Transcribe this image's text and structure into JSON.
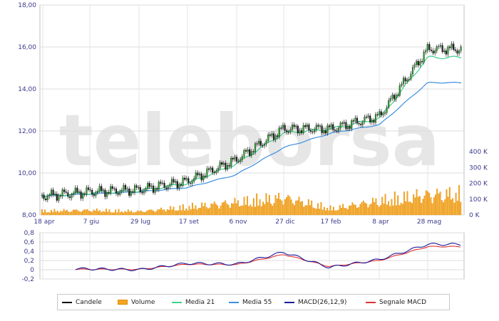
{
  "watermark": "teleborsa",
  "chart_data": [
    {
      "type": "candlestick",
      "panel": "price",
      "x": [
        "18 apr",
        "7 giu",
        "29 lug",
        "17 set",
        "6 nov",
        "27 dic",
        "17 feb",
        "8 apr",
        "28 mag"
      ],
      "y_ticks": [
        "8,00",
        "10,00",
        "12,00",
        "14,00",
        "16,00",
        "18,00"
      ],
      "ylim": [
        8,
        18
      ],
      "y2_ticks": [
        "0 K",
        "100 K",
        "200 K",
        "300 K",
        "400 K"
      ],
      "y2lim": [
        0,
        400000
      ],
      "grid": true,
      "series": [
        {
          "name": "Candele",
          "color": "#000000",
          "x": [
            "18 apr",
            "7 giu",
            "29 lug",
            "17 set",
            "6 nov",
            "27 dic",
            "17 feb",
            "8 apr",
            "28 mag"
          ],
          "values": [
            8.9,
            9.1,
            9.2,
            9.6,
            10.6,
            12.1,
            12.1,
            12.7,
            15.9
          ]
        },
        {
          "name": "Volume",
          "color": "#f5a623",
          "x": [
            "18 apr",
            "7 giu",
            "29 lug",
            "17 set",
            "6 nov",
            "27 dic",
            "17 feb",
            "8 apr",
            "28 mag"
          ],
          "values": [
            25000,
            30000,
            22000,
            50000,
            80000,
            110000,
            40000,
            90000,
            130000
          ]
        },
        {
          "name": "Media 21",
          "color": "#3ecf8e",
          "x": [
            "18 apr",
            "7 giu",
            "29 lug",
            "17 set",
            "6 nov",
            "27 dic",
            "17 feb",
            "8 apr",
            "28 mag"
          ],
          "values": [
            8.9,
            9.05,
            9.15,
            9.5,
            10.4,
            11.9,
            12.1,
            12.6,
            15.5
          ]
        },
        {
          "name": "Media 55",
          "color": "#3b8fe0",
          "x": [
            "18 apr",
            "7 giu",
            "29 lug",
            "17 set",
            "6 nov",
            "27 dic",
            "17 feb",
            "8 apr",
            "28 mag"
          ],
          "values": [
            8.9,
            9.0,
            9.1,
            9.3,
            9.9,
            11.2,
            11.9,
            12.3,
            14.3
          ]
        }
      ]
    },
    {
      "type": "line",
      "panel": "macd",
      "x": [
        "18 apr",
        "7 giu",
        "29 lug",
        "17 set",
        "6 nov",
        "27 dic",
        "17 feb",
        "8 apr",
        "28 mag"
      ],
      "y_ticks": [
        "-0,2",
        "0",
        "0,2",
        "0,4",
        "0,6",
        "0,8"
      ],
      "ylim": [
        -0.2,
        0.8
      ],
      "grid": true,
      "series": [
        {
          "name": "MACD(26,12,9)",
          "color": "#1a1a9a",
          "x": [
            "7 giu",
            "29 lug",
            "17 set",
            "6 nov",
            "27 dic",
            "17 feb",
            "8 apr",
            "28 mag"
          ],
          "values": [
            0.02,
            0.0,
            0.14,
            0.12,
            0.38,
            0.05,
            0.22,
            0.55
          ]
        },
        {
          "name": "Segnale MACD",
          "color": "#e03030",
          "x": [
            "7 giu",
            "29 lug",
            "17 set",
            "6 nov",
            "27 dic",
            "17 feb",
            "8 apr",
            "28 mag"
          ],
          "values": [
            0.01,
            0.01,
            0.12,
            0.11,
            0.33,
            0.07,
            0.2,
            0.5
          ]
        }
      ]
    }
  ],
  "legend": {
    "items": [
      {
        "label": "Candele",
        "color": "#000000",
        "kind": "line"
      },
      {
        "label": "Volume",
        "color": "#f5a623",
        "kind": "bar"
      },
      {
        "label": "Media 21",
        "color": "#3ecf8e",
        "kind": "line"
      },
      {
        "label": "Media 55",
        "color": "#3b8fe0",
        "kind": "line"
      },
      {
        "label": "MACD(26,12,9)",
        "color": "#1a1a9a",
        "kind": "line"
      },
      {
        "label": "Segnale MACD",
        "color": "#e03030",
        "kind": "line"
      }
    ]
  }
}
